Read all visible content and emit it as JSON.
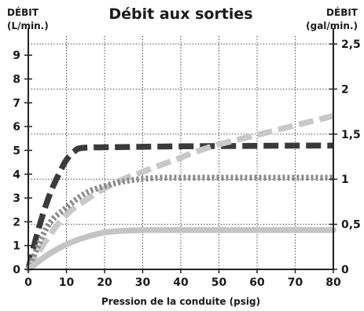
{
  "chart_data": {
    "type": "line",
    "title": "Débit aux sorties",
    "y_left_label": "DÉBIT",
    "y_left_unit": "(L/min.)",
    "y_right_label": "DÉBIT",
    "y_right_unit": "(gal/min.)",
    "xlabel": "Pression de la conduite (psig)",
    "xlim": [
      0,
      80
    ],
    "ylim_left": [
      0,
      10
    ],
    "ylim_right": [
      0,
      2.64
    ],
    "x_ticks": [
      "0",
      "10",
      "20",
      "30",
      "40",
      "50",
      "60",
      "70",
      "80"
    ],
    "y_left_ticks": [
      "0",
      "1",
      "2",
      "3",
      "4",
      "5",
      "6",
      "7",
      "8",
      "9"
    ],
    "y_right_ticks": [
      {
        "value": 0,
        "label": "0"
      },
      {
        "value": 0.5,
        "label": "0,5"
      },
      {
        "value": 1,
        "label": "1"
      },
      {
        "value": 1.5,
        "label": "1,5"
      },
      {
        "value": 2,
        "label": "2"
      },
      {
        "value": 2.5,
        "label": "2,5"
      }
    ],
    "grid": true,
    "series": [
      {
        "color": "#3a3a3a",
        "style": "dashed",
        "x": [
          0,
          2,
          4,
          6,
          8,
          10,
          12,
          14,
          20,
          30,
          40,
          50,
          60,
          70,
          80
        ],
        "y": [
          0,
          1.3,
          2.4,
          3.3,
          4.0,
          4.6,
          4.95,
          5.1,
          5.13,
          5.15,
          5.17,
          5.18,
          5.19,
          5.2,
          5.2
        ]
      },
      {
        "color": "#c8c8c8",
        "style": "dashed",
        "x": [
          0,
          5,
          10,
          15,
          20,
          25,
          30,
          35,
          40,
          45,
          50,
          55,
          60,
          65,
          70,
          75,
          80
        ],
        "y": [
          0,
          1.3,
          2.3,
          2.9,
          3.4,
          3.8,
          4.1,
          4.4,
          4.7,
          5.0,
          5.25,
          5.45,
          5.65,
          5.85,
          6.05,
          6.25,
          6.45
        ]
      },
      {
        "color": "#8a8a8a",
        "style": "dotted",
        "x": [
          0,
          5,
          10,
          15,
          20,
          25,
          30,
          35,
          40,
          50,
          60,
          70,
          80
        ],
        "y": [
          0,
          1.8,
          2.6,
          3.2,
          3.5,
          3.7,
          3.8,
          3.85,
          3.85,
          3.85,
          3.85,
          3.85,
          3.85
        ]
      },
      {
        "color": "#c4c4c4",
        "style": "solid",
        "x": [
          0,
          5,
          10,
          15,
          20,
          25,
          30,
          40,
          50,
          60,
          70,
          80
        ],
        "y": [
          0,
          0.6,
          1.05,
          1.35,
          1.55,
          1.62,
          1.65,
          1.65,
          1.65,
          1.65,
          1.65,
          1.65
        ]
      }
    ]
  }
}
